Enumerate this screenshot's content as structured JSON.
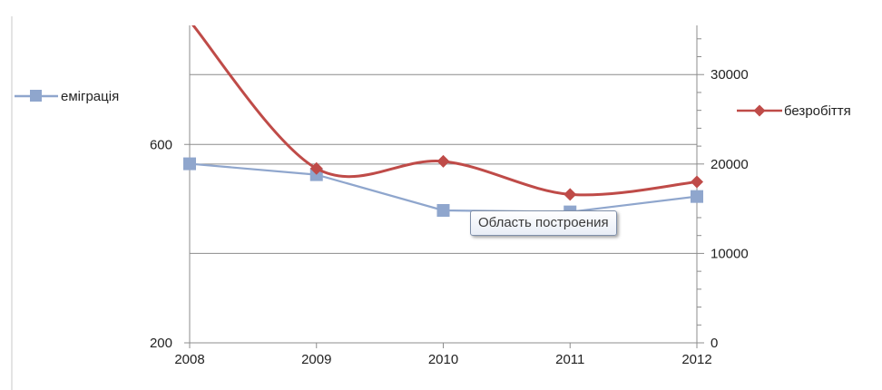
{
  "chart_data": {
    "type": "line",
    "categories": [
      "2008",
      "2009",
      "2010",
      "2011",
      "2012"
    ],
    "series": [
      {
        "name": "еміграція",
        "axis": "left",
        "color": "#8fa6cd",
        "marker": "square",
        "smooth": false,
        "values": [
          561,
          539,
          467,
          464,
          495
        ]
      },
      {
        "name": "безробіття",
        "axis": "right",
        "color": "#bf4b48",
        "marker": "diamond",
        "smooth": true,
        "values": [
          36000,
          19500,
          20300,
          16600,
          18000
        ]
      }
    ],
    "y_left": {
      "ticks": [
        200,
        600
      ],
      "tick_labels": [
        "200",
        "600"
      ],
      "range": [
        200,
        840
      ]
    },
    "y_right": {
      "ticks": [
        0,
        10000,
        20000,
        30000
      ],
      "tick_labels": [
        "0",
        "10000",
        "20000",
        "30000"
      ],
      "range": [
        0,
        35500
      ]
    },
    "grid": true,
    "legend_placement": "left and right of plot area"
  },
  "tooltip_text": "Область построения"
}
